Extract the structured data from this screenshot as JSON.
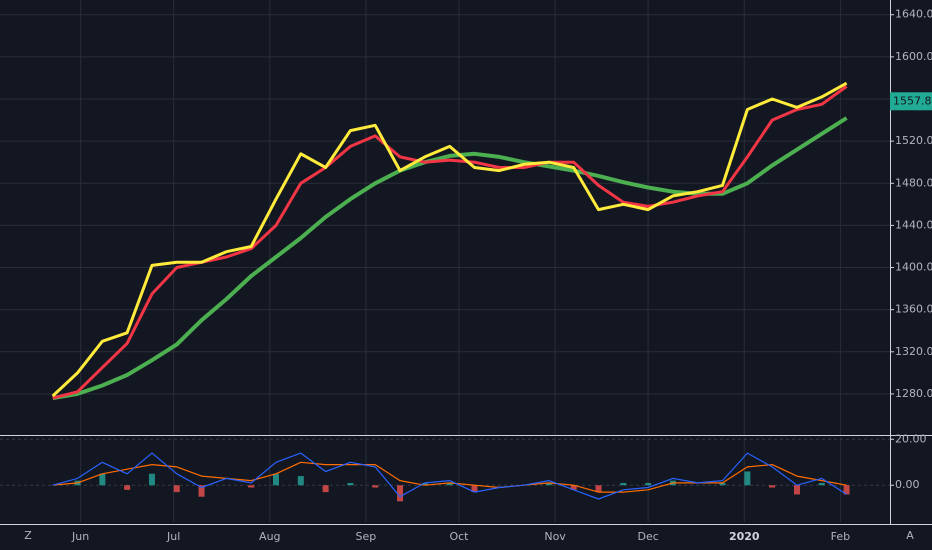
{
  "chart_data": [
    {
      "type": "line",
      "x": [
        -9,
        -1,
        7,
        15,
        23,
        31,
        39,
        47,
        55,
        63,
        71,
        79,
        87,
        95,
        103,
        111,
        119,
        127,
        135,
        143,
        151,
        159,
        167,
        175,
        183,
        191,
        199,
        207,
        215,
        223,
        231,
        239,
        247
      ],
      "series": [
        {
          "color": "#4caf50",
          "values": [
            1276,
            1280,
            1288,
            1298,
            1312,
            1327,
            1350,
            1370,
            1392,
            1410,
            1428,
            1448,
            1465,
            1480,
            1492,
            1500,
            1506,
            1508,
            1505,
            1500,
            1496,
            1492,
            1487,
            1481,
            1476,
            1472,
            1470,
            1470,
            1480,
            1497,
            1512,
            1527,
            1542
          ]
        },
        {
          "color": "#f23645",
          "values": [
            1276,
            1282,
            1305,
            1328,
            1375,
            1400,
            1405,
            1410,
            1418,
            1440,
            1480,
            1495,
            1515,
            1525,
            1505,
            1500,
            1502,
            1500,
            1495,
            1495,
            1500,
            1500,
            1478,
            1462,
            1458,
            1462,
            1468,
            1472,
            1505,
            1540,
            1550,
            1555,
            1572
          ]
        },
        {
          "color": "#ffeb3b",
          "values": [
            1278,
            1300,
            1330,
            1338,
            1402,
            1405,
            1405,
            1415,
            1420,
            1465,
            1508,
            1495,
            1530,
            1535,
            1492,
            1505,
            1515,
            1495,
            1492,
            1498,
            1500,
            1495,
            1455,
            1460,
            1455,
            1468,
            1472,
            1478,
            1550,
            1560,
            1552,
            1562,
            1575
          ]
        }
      ],
      "xlim": [
        -26,
        261
      ],
      "xticks": [
        {
          "value": 0,
          "label": "Jun"
        },
        {
          "value": 30,
          "label": "Jul"
        },
        {
          "value": 61,
          "label": "Aug"
        },
        {
          "value": 92,
          "label": "Sep"
        },
        {
          "value": 122,
          "label": "Oct"
        },
        {
          "value": 153,
          "label": "Nov"
        },
        {
          "value": 183,
          "label": "Dec"
        },
        {
          "value": 214,
          "label": "2020"
        },
        {
          "value": 245,
          "label": "Feb"
        }
      ],
      "ylim": [
        1241,
        1654
      ],
      "yticks": [
        {
          "value": 1280,
          "label": "1280.00"
        },
        {
          "value": 1320,
          "label": "1320.00"
        },
        {
          "value": 1360,
          "label": "1360.00"
        },
        {
          "value": 1400,
          "label": "1400.00"
        },
        {
          "value": 1440,
          "label": "1440.00"
        },
        {
          "value": 1480,
          "label": "1480.00"
        },
        {
          "value": 1520,
          "label": "1520.00"
        },
        {
          "value": 1560,
          "label": "1560.00"
        },
        {
          "value": 1600,
          "label": "1600.00"
        },
        {
          "value": 1640,
          "label": "1640.00"
        }
      ],
      "last_price": 1557.84,
      "grid": true
    },
    {
      "type": "line",
      "x": [
        -9,
        -1,
        7,
        15,
        23,
        31,
        39,
        47,
        55,
        63,
        71,
        79,
        87,
        95,
        103,
        111,
        119,
        127,
        135,
        143,
        151,
        159,
        167,
        175,
        183,
        191,
        199,
        207,
        215,
        223,
        231,
        239,
        247
      ],
      "series": [
        {
          "type": "bar",
          "color": "#26a69a",
          "negative_color": "#ef5350",
          "values": [
            0,
            2,
            5,
            -2,
            5,
            -3,
            -5,
            0,
            -1,
            5,
            4,
            -3,
            1,
            -1,
            -7,
            1,
            1,
            -3,
            0,
            0,
            1,
            -2,
            -3,
            1,
            1,
            2,
            0,
            1,
            6,
            -1,
            -4,
            1,
            -4
          ]
        },
        {
          "color": "#ff6d00",
          "values": [
            0,
            1,
            5,
            7,
            9,
            8,
            4,
            3,
            2,
            5,
            10,
            9,
            9,
            9,
            2,
            0,
            1,
            0,
            -1,
            0,
            1,
            0,
            -3,
            -3,
            -2,
            1,
            1,
            1,
            8,
            9,
            4,
            2,
            0
          ]
        },
        {
          "color": "#2962ff",
          "values": [
            0,
            3,
            10,
            5,
            14,
            5,
            -1,
            3,
            1,
            10,
            14,
            6,
            10,
            8,
            -5,
            1,
            2,
            -3,
            -1,
            0,
            2,
            -2,
            -6,
            -2,
            -1,
            3,
            1,
            2,
            14,
            8,
            0,
            3,
            -4
          ]
        }
      ],
      "ylim": [
        -16,
        21
      ],
      "yticks": [
        {
          "value": 0,
          "label": "0.00"
        },
        {
          "value": 20,
          "label": "20.00"
        }
      ],
      "grid": true
    }
  ],
  "ui": {
    "left_button": "Z",
    "right_button": "A"
  }
}
